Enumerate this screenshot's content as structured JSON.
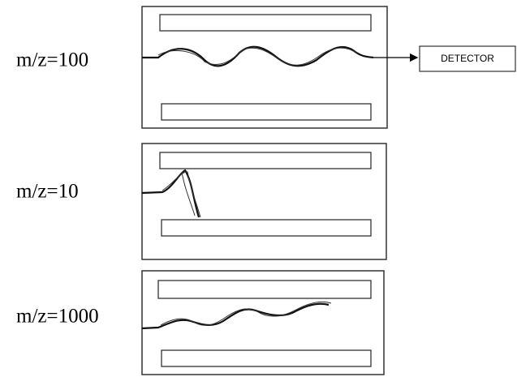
{
  "panels": [
    {
      "label": "m/z=100",
      "detector": "DETECTOR"
    },
    {
      "label": "m/z=10"
    },
    {
      "label": "m/z=1000"
    }
  ]
}
